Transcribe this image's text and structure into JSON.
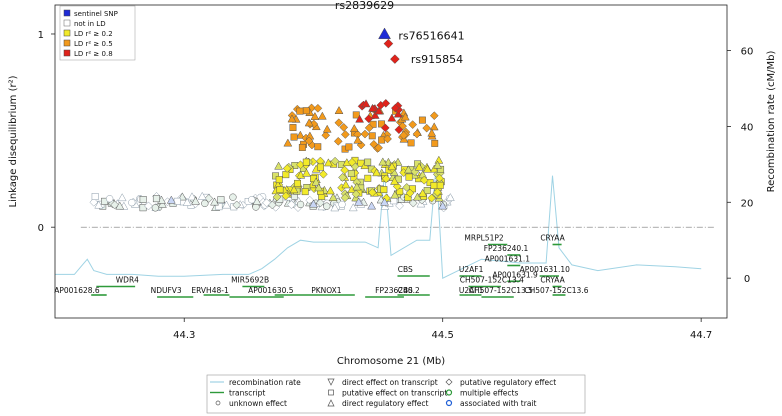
{
  "chart_data": {
    "type": "scatter",
    "xlabel": "Chromosome 21 (Mb)",
    "ylabel": "Linkage disequilibrium (r²)",
    "y2label": "Recombination rate (cM/Mb)",
    "xlim": [
      44.2,
      44.72
    ],
    "ylim": [
      -0.47,
      1.15
    ],
    "y2lim": [
      -10.5,
      72
    ],
    "xticks": [
      44.3,
      44.5,
      44.7
    ],
    "yticks": [
      0,
      1
    ],
    "y2ticks": [
      0,
      20,
      40,
      60
    ],
    "grid": false,
    "legend_position": "top-left",
    "legend": [
      {
        "label": "sentinel SNP",
        "color": "#1f2bd6"
      },
      {
        "label": "not in LD",
        "color": "#ffffff"
      },
      {
        "label": "LD r² ≥ 0.2",
        "color": "#f2ea2a"
      },
      {
        "label": "LD r² ≥ 0.5",
        "color": "#f29a1c"
      },
      {
        "label": "LD r² ≥ 0.8",
        "color": "#e0231b"
      }
    ],
    "snp_labels": [
      {
        "name": "rs2839629",
        "x": 44.455,
        "r2": 1.0,
        "shape": "triangle",
        "color": "#1f2bd6"
      },
      {
        "name": "rs76516641",
        "x": 44.458,
        "r2": 0.95,
        "shape": "diamond",
        "color": "#e0231b"
      },
      {
        "name": "rs915854",
        "x": 44.463,
        "r2": 0.87,
        "shape": "diamond",
        "color": "#e0231b"
      }
    ],
    "recombination_rate": [
      [
        44.2,
        1
      ],
      [
        44.215,
        1
      ],
      [
        44.22,
        3
      ],
      [
        44.225,
        5
      ],
      [
        44.23,
        2
      ],
      [
        44.24,
        1
      ],
      [
        44.26,
        1
      ],
      [
        44.28,
        0.5
      ],
      [
        44.3,
        0.5
      ],
      [
        44.33,
        1
      ],
      [
        44.35,
        1
      ],
      [
        44.36,
        2.5
      ],
      [
        44.37,
        5
      ],
      [
        44.38,
        8
      ],
      [
        44.39,
        10
      ],
      [
        44.4,
        9.5
      ],
      [
        44.42,
        9.5
      ],
      [
        44.44,
        9.5
      ],
      [
        44.45,
        8
      ],
      [
        44.455,
        28
      ],
      [
        44.46,
        6
      ],
      [
        44.48,
        10
      ],
      [
        44.49,
        10
      ],
      [
        44.495,
        30
      ],
      [
        44.5,
        0
      ],
      [
        44.53,
        5
      ],
      [
        44.56,
        4
      ],
      [
        44.58,
        4
      ],
      [
        44.585,
        27
      ],
      [
        44.59,
        8
      ],
      [
        44.6,
        3.5
      ],
      [
        44.62,
        2
      ],
      [
        44.65,
        3.5
      ],
      [
        44.68,
        3
      ],
      [
        44.7,
        2.5
      ]
    ],
    "genes_top": [
      {
        "name": "WDR4",
        "start": 44.232,
        "end": 44.262,
        "label_x": 44.256,
        "dir": "-",
        "row": 1
      },
      {
        "name": "NDUFV3",
        "start": 44.279,
        "end": 44.307,
        "label_x": 44.286,
        "dir": "+",
        "row": 2
      },
      {
        "name": "MIR5692B",
        "start": 44.345,
        "end": 44.362,
        "label_x": 44.351,
        "dir": "+",
        "row": 1
      },
      {
        "name": "AP001630.5",
        "start": 44.335,
        "end": 44.377,
        "label_x": 44.367,
        "dir": "+",
        "row": 2
      },
      {
        "name": "CBS",
        "start": 44.465,
        "end": 44.49,
        "label_x": 44.471,
        "dir": "-",
        "row": 0
      },
      {
        "name": "FP236240.2",
        "start": 44.44,
        "end": 44.47,
        "label_x": 44.465,
        "dir": "+",
        "row": 2
      },
      {
        "name": "U2AF1",
        "start": 44.513,
        "end": 44.53,
        "label_x": 44.522,
        "dir": "-",
        "row": 0
      },
      {
        "name": "MRPL51P2",
        "start": 44.535,
        "end": 44.55,
        "label_x": 44.532,
        "dir": "+",
        "row": -3
      },
      {
        "name": "FP236240.1",
        "start": 44.55,
        "end": 44.56,
        "label_x": 44.549,
        "dir": "+",
        "row": -2
      },
      {
        "name": "AP001631.1",
        "start": 44.55,
        "end": 44.56,
        "label_x": 44.55,
        "dir": "+",
        "row": -1
      },
      {
        "name": "AP001631.9",
        "start": 44.55,
        "end": 44.56,
        "label_x": 44.556,
        "dir": "+",
        "row": 0.5
      },
      {
        "name": "CRYAA",
        "start": 44.585,
        "end": 44.592,
        "label_x": 44.585,
        "dir": "+",
        "row": -3
      },
      {
        "name": "AP001631.10",
        "start": 44.575,
        "end": 44.59,
        "label_x": 44.579,
        "dir": "+",
        "row": 0
      },
      {
        "name": "CH507-152C13.4",
        "start": 44.52,
        "end": 44.545,
        "label_x": 44.538,
        "dir": "+",
        "row": 1
      },
      {
        "name": "CRYAA",
        "start": 44.585,
        "end": 44.592,
        "label_x": 44.585,
        "dir": "+",
        "row": 1
      },
      {
        "name": "CH507-152C13.5",
        "start": 44.53,
        "end": 44.555,
        "label_x": 44.545,
        "dir": "+",
        "row": 2
      }
    ],
    "genes_bottom": [
      {
        "name": "AP001628.6",
        "start": 44.228,
        "end": 44.24,
        "label_x": 44.217,
        "dir": "+"
      },
      {
        "name": "ERVH48-1",
        "start": 44.315,
        "end": 44.335,
        "label_x": 44.32,
        "dir": "-"
      },
      {
        "name": "PKNOX1",
        "start": 44.37,
        "end": 44.432,
        "label_x": 44.41,
        "dir": "+"
      },
      {
        "name": "CBS",
        "start": 44.465,
        "end": 44.49,
        "label_x": 44.471,
        "dir": "-"
      },
      {
        "name": "U2AF1",
        "start": 44.513,
        "end": 44.53,
        "label_x": 44.522,
        "dir": "-"
      },
      {
        "name": "CH507-152C13.6",
        "start": 44.585,
        "end": 44.595,
        "label_x": 44.588,
        "dir": "+"
      }
    ]
  },
  "bottom_legend": [
    {
      "label": "recombination rate",
      "icon": "line-lightblue"
    },
    {
      "label": "transcript",
      "icon": "line-green"
    },
    {
      "label": "unknown effect",
      "icon": "circle-small"
    },
    {
      "label": "direct effect on transcript",
      "icon": "triangle-down"
    },
    {
      "label": "putative effect on transcript",
      "icon": "square"
    },
    {
      "label": "direct regulatory effect",
      "icon": "triangle-up"
    },
    {
      "label": "putative regulatory effect",
      "icon": "diamond"
    },
    {
      "label": "multiple effects",
      "icon": "circle-green"
    },
    {
      "label": "associated with trait",
      "icon": "circle-blue"
    }
  ]
}
